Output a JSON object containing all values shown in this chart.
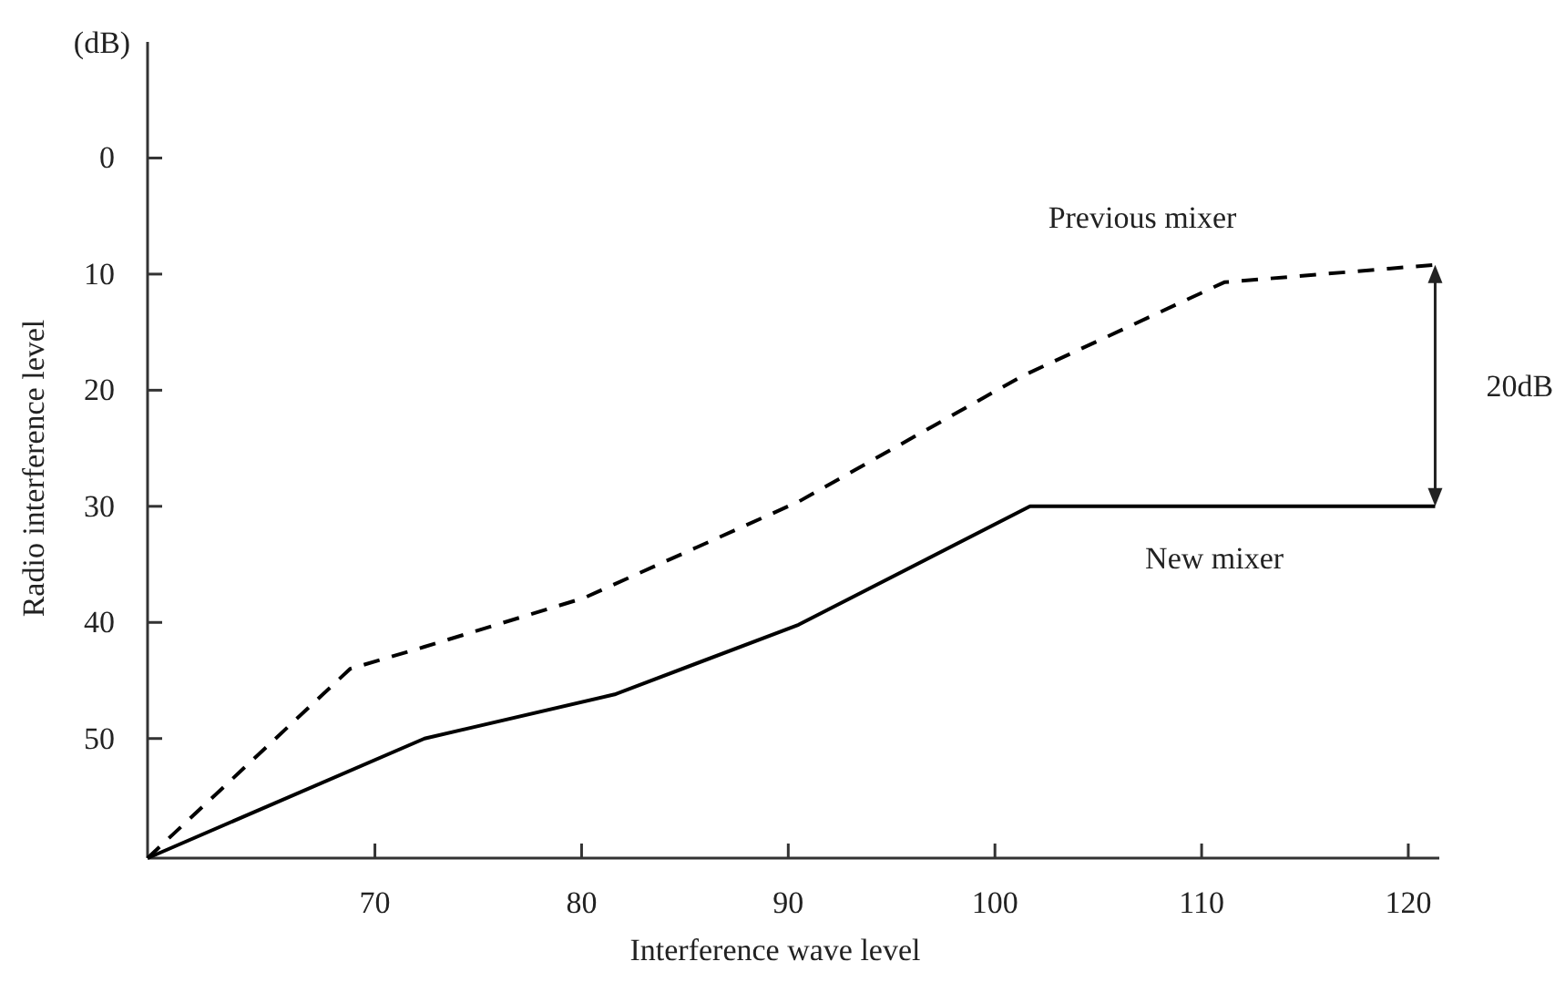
{
  "chart_data": {
    "type": "line",
    "xlabel": "Interference wave level",
    "ylabel": "Radio interference level",
    "xlim": [
      59,
      121.5
    ],
    "ylim": [
      60.3,
      -10
    ],
    "xticks": [
      70,
      80,
      90,
      100,
      110,
      120
    ],
    "yticks": [
      0,
      10,
      20,
      30,
      40,
      50
    ],
    "grid": false,
    "series": [
      {
        "name": "Previous mixer",
        "color": "#000000",
        "line_style": "dashed",
        "x": [
          59,
          68.8,
          72.4,
          80.1,
          90.5,
          101.3,
          111.1,
          121.3
        ],
        "values": [
          60.3,
          44.0,
          42.1,
          37.9,
          29.6,
          18.8,
          10.7,
          9.2
        ]
      },
      {
        "name": "New mixer",
        "color": "#000000",
        "line_style": "solid",
        "x": [
          59,
          72.4,
          81.6,
          90.5,
          101.7,
          121.3
        ],
        "values": [
          60.3,
          50,
          46.2,
          40.2,
          30,
          30
        ]
      }
    ],
    "annotations": [
      "(dB)",
      "20dB"
    ]
  }
}
